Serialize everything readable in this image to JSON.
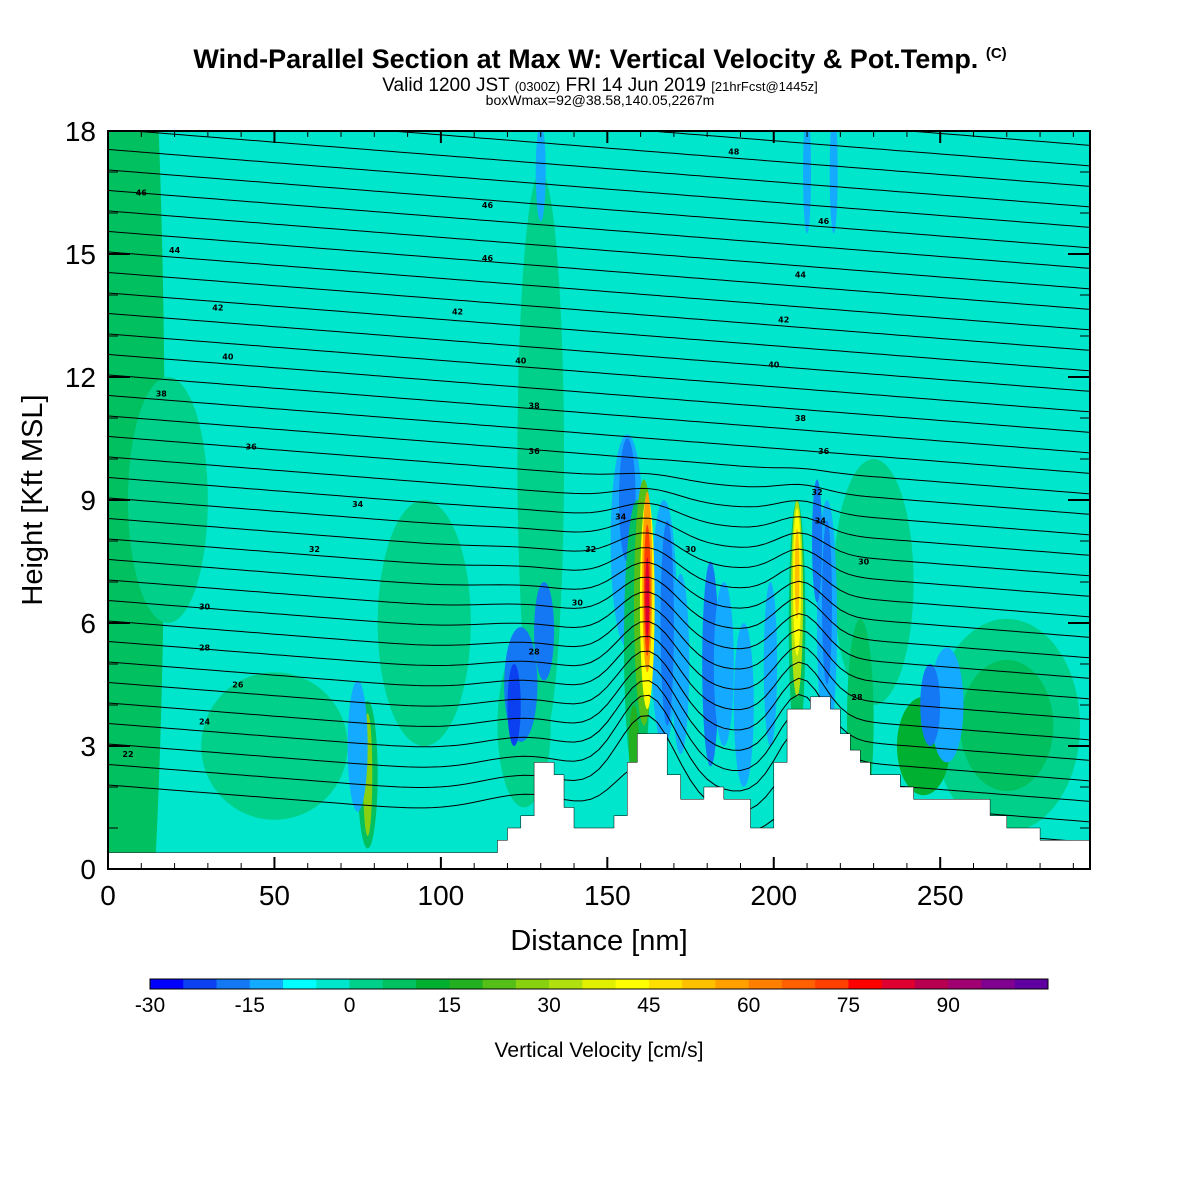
{
  "header": {
    "title_main": "Wind-Parallel Section at Max W: Vertical Velocity & Pot.Temp.",
    "title_mark": "(C)",
    "valid_prefix": "Valid 1200 JST",
    "valid_z": "(0300Z)",
    "valid_date": "FRI 14 Jun 2019",
    "valid_fcst": "[21hrFcst@1445z]",
    "box_info": "boxWmax=92@38.58,140.05,2267m"
  },
  "chart_data": {
    "type": "heatmap",
    "xlabel": "Distance [nm]",
    "ylabel": "Height [Kft MSL]",
    "xlim": [
      0,
      295
    ],
    "ylim": [
      0,
      18
    ],
    "x_ticks": [
      "0",
      "50",
      "100",
      "150",
      "200",
      "250"
    ],
    "y_ticks": [
      "0",
      "3",
      "6",
      "9",
      "12",
      "15",
      "18"
    ],
    "colorbar": {
      "title": "Vertical Velocity [cm/s]",
      "min": -30,
      "max": 105,
      "step": 5,
      "tick_labels": [
        "-30",
        "-15",
        "0",
        "15",
        "30",
        "45",
        "60",
        "75",
        "90"
      ],
      "colors": [
        "#0000ff",
        "#0a40f0",
        "#1478f5",
        "#14aaff",
        "#00ffff",
        "#00e6cc",
        "#00d08a",
        "#00c060",
        "#00b030",
        "#22b020",
        "#55c018",
        "#88d010",
        "#b0e010",
        "#e0f000",
        "#ffff00",
        "#ffe000",
        "#ffc000",
        "#ffa000",
        "#ff8000",
        "#ff6000",
        "#ff4000",
        "#ff0000",
        "#dd0030",
        "#b80050",
        "#a00070",
        "#800090",
        "#6000a0"
      ]
    },
    "theta_contour_labels": [
      "22",
      "24",
      "26",
      "28",
      "30",
      "32",
      "34",
      "36",
      "38",
      "40",
      "42",
      "44",
      "46",
      "48"
    ],
    "terrain": [
      [
        0,
        0.4
      ],
      [
        117,
        0.4
      ],
      [
        117,
        0.7
      ],
      [
        120,
        0.7
      ],
      [
        120,
        1.0
      ],
      [
        124,
        1.0
      ],
      [
        124,
        1.3
      ],
      [
        128,
        1.3
      ],
      [
        128,
        2.6
      ],
      [
        134,
        2.6
      ],
      [
        134,
        2.3
      ],
      [
        137,
        2.3
      ],
      [
        137,
        1.5
      ],
      [
        140,
        1.5
      ],
      [
        140,
        1.0
      ],
      [
        152,
        1.0
      ],
      [
        152,
        1.3
      ],
      [
        156,
        1.3
      ],
      [
        156,
        2.6
      ],
      [
        159,
        2.6
      ],
      [
        159,
        3.3
      ],
      [
        168,
        3.3
      ],
      [
        168,
        2.3
      ],
      [
        172,
        2.3
      ],
      [
        172,
        1.7
      ],
      [
        179,
        1.7
      ],
      [
        179,
        2.0
      ],
      [
        185,
        2.0
      ],
      [
        185,
        1.7
      ],
      [
        193,
        1.7
      ],
      [
        193,
        1.0
      ],
      [
        200,
        1.0
      ],
      [
        200,
        2.6
      ],
      [
        204,
        2.6
      ],
      [
        204,
        3.9
      ],
      [
        211,
        3.9
      ],
      [
        211,
        4.2
      ],
      [
        217,
        4.2
      ],
      [
        217,
        3.9
      ],
      [
        220,
        3.9
      ],
      [
        220,
        3.3
      ],
      [
        223,
        3.3
      ],
      [
        223,
        2.9
      ],
      [
        226,
        2.9
      ],
      [
        226,
        2.6
      ],
      [
        229,
        2.6
      ],
      [
        229,
        2.3
      ],
      [
        238,
        2.3
      ],
      [
        238,
        2.0
      ],
      [
        242,
        2.0
      ],
      [
        242,
        1.7
      ],
      [
        265,
        1.7
      ],
      [
        265,
        1.3
      ],
      [
        270,
        1.3
      ],
      [
        270,
        1.0
      ],
      [
        280,
        1.0
      ],
      [
        280,
        0.7
      ],
      [
        295,
        0.7
      ]
    ]
  }
}
